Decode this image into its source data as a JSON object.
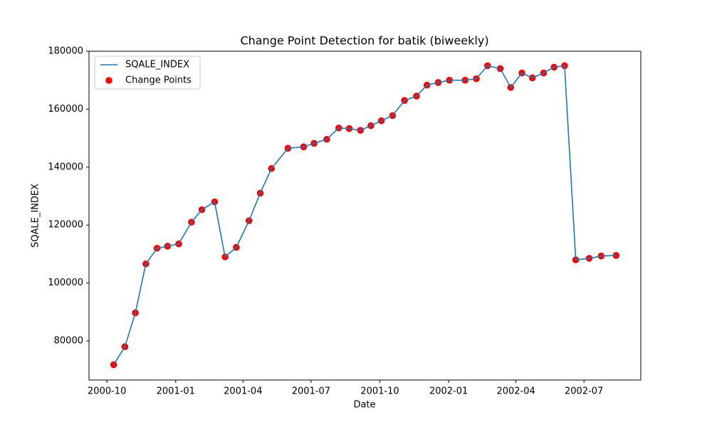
{
  "chart_data": {
    "type": "line",
    "title": "Change Point Detection for batik (biweekly)",
    "x_label": "Date",
    "y_label": "SQALE_INDEX",
    "x": [
      "2000-10-10",
      "2000-10-25",
      "2000-11-08",
      "2000-11-22",
      "2000-12-07",
      "2000-12-21",
      "2001-01-05",
      "2001-01-22",
      "2001-02-05",
      "2001-02-22",
      "2001-03-08",
      "2001-03-23",
      "2001-04-09",
      "2001-04-24",
      "2001-05-09",
      "2001-05-31",
      "2001-06-21",
      "2001-07-05",
      "2001-07-22",
      "2001-08-07",
      "2001-08-21",
      "2001-09-05",
      "2001-09-19",
      "2001-10-03",
      "2001-10-18",
      "2001-11-03",
      "2001-11-19",
      "2001-12-03",
      "2001-12-18",
      "2002-01-02",
      "2002-01-23",
      "2002-02-07",
      "2002-02-22",
      "2002-03-11",
      "2002-03-25",
      "2002-04-09",
      "2002-04-23",
      "2002-05-08",
      "2002-05-22",
      "2002-06-05",
      "2002-06-20",
      "2002-07-08",
      "2002-07-24",
      "2002-08-13"
    ],
    "series": [
      {
        "name": "SQALE_INDEX",
        "type": "line",
        "color": "#1f77b4",
        "values": [
          71800,
          78000,
          89700,
          106600,
          112000,
          112700,
          113500,
          121000,
          125300,
          128000,
          109000,
          112300,
          121500,
          131000,
          139500,
          146500,
          147000,
          148200,
          149600,
          153500,
          153300,
          152700,
          154300,
          156000,
          157800,
          163000,
          164500,
          168300,
          169200,
          170000,
          170000,
          170500,
          175000,
          174000,
          167500,
          172500,
          170800,
          172500,
          174500,
          175000,
          108000,
          108500,
          109300,
          109500
        ]
      },
      {
        "name": "Change Points",
        "type": "scatter",
        "color": "#ff0000",
        "values": [
          71800,
          78000,
          89700,
          106600,
          112000,
          112700,
          113500,
          121000,
          125300,
          128000,
          109000,
          112300,
          121500,
          131000,
          139500,
          146500,
          147000,
          148200,
          149600,
          153500,
          153300,
          152700,
          154300,
          156000,
          157800,
          163000,
          164500,
          168300,
          169200,
          170000,
          170000,
          170500,
          175000,
          174000,
          167500,
          172500,
          170800,
          172500,
          174500,
          175000,
          108000,
          108500,
          109300,
          109500
        ]
      }
    ],
    "xlim": [
      "2000-09-07",
      "2002-09-15"
    ],
    "xticks": [
      "2000-10",
      "2001-01",
      "2001-04",
      "2001-07",
      "2001-10",
      "2002-01",
      "2002-04",
      "2002-07"
    ],
    "ylim": [
      66500,
      180000
    ],
    "yticks": [
      80000,
      100000,
      120000,
      140000,
      160000,
      180000
    ],
    "legend": "upper-left"
  }
}
